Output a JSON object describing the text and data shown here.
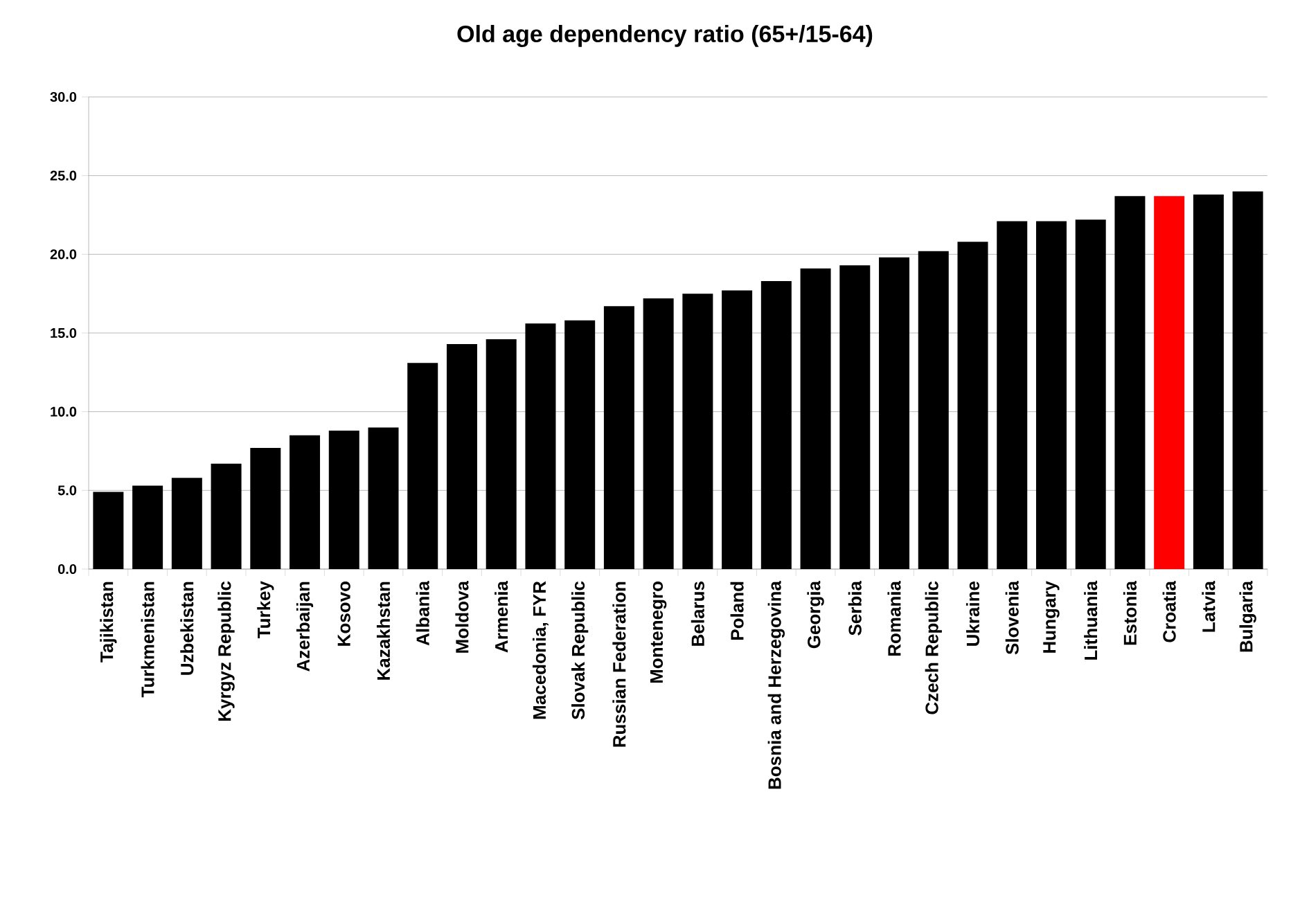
{
  "chart_data": {
    "type": "bar",
    "title": "Old age dependency ratio (65+/15-64)",
    "categories": [
      "Tajikistan",
      "Turkmenistan",
      "Uzbekistan",
      "Kyrgyz Republic",
      "Turkey",
      "Azerbaijan",
      "Kosovo",
      "Kazakhstan",
      "Albania",
      "Moldova",
      "Armenia",
      "Macedonia, FYR",
      "Slovak Republic",
      "Russian Federation",
      "Montenegro",
      "Belarus",
      "Poland",
      "Bosnia and Herzegovina",
      "Georgia",
      "Serbia",
      "Romania",
      "Czech Republic",
      "Ukraine",
      "Slovenia",
      "Hungary",
      "Lithuania",
      "Estonia",
      "Croatia",
      "Latvia",
      "Bulgaria"
    ],
    "values": [
      4.9,
      5.3,
      5.8,
      6.7,
      7.7,
      8.5,
      8.8,
      9.0,
      13.1,
      14.3,
      14.6,
      15.6,
      15.8,
      16.7,
      17.2,
      17.5,
      17.7,
      18.3,
      19.1,
      19.3,
      19.8,
      20.2,
      20.8,
      22.1,
      22.1,
      22.2,
      23.7,
      23.7,
      23.8,
      24.0
    ],
    "colors": [
      "#000000",
      "#000000",
      "#000000",
      "#000000",
      "#000000",
      "#000000",
      "#000000",
      "#000000",
      "#000000",
      "#000000",
      "#000000",
      "#000000",
      "#000000",
      "#000000",
      "#000000",
      "#000000",
      "#000000",
      "#000000",
      "#000000",
      "#000000",
      "#000000",
      "#000000",
      "#000000",
      "#000000",
      "#000000",
      "#000000",
      "#000000",
      "#ff0000",
      "#000000",
      "#000000"
    ],
    "ylim": [
      0,
      30
    ],
    "yticks": [
      {
        "value": 0,
        "label": "0.0"
      },
      {
        "value": 5,
        "label": "5.0"
      },
      {
        "value": 10,
        "label": "10.0"
      },
      {
        "value": 15,
        "label": "15.0"
      },
      {
        "value": 20,
        "label": "20.0"
      },
      {
        "value": 25,
        "label": "25.0"
      },
      {
        "value": 30,
        "label": "30.0"
      }
    ],
    "grid": "y"
  }
}
